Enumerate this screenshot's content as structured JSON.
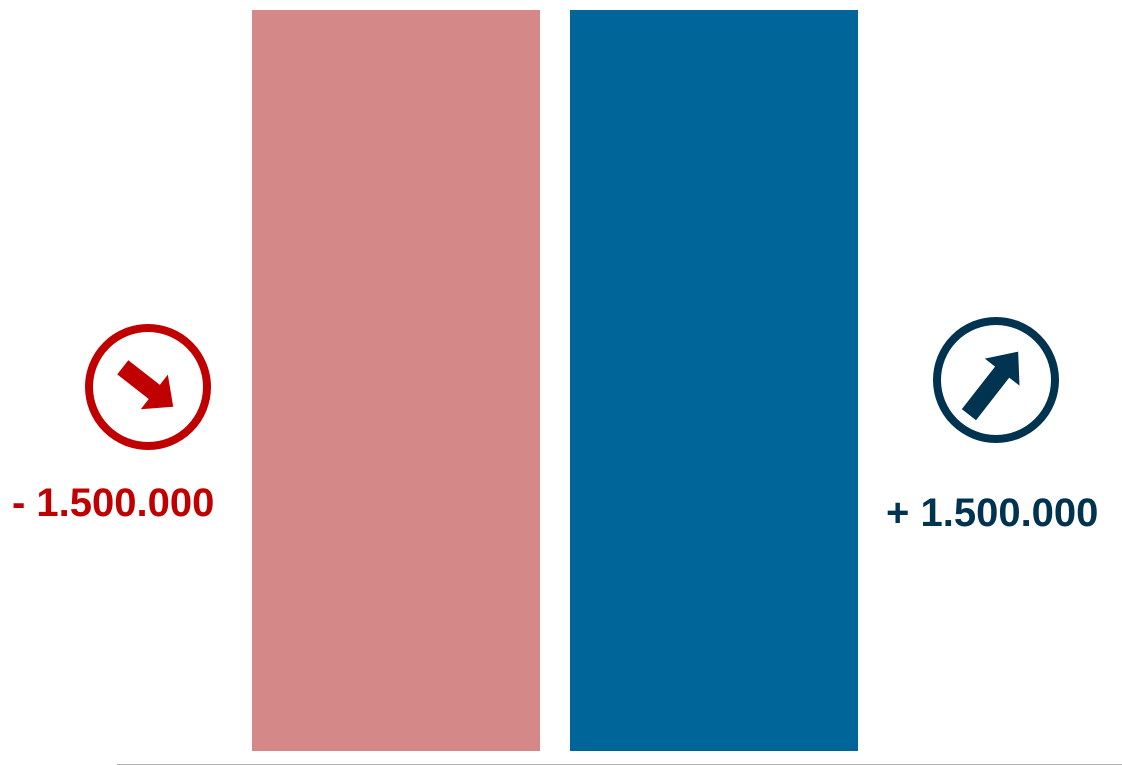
{
  "chart_data": {
    "type": "bar",
    "categories": [
      "",
      ""
    ],
    "values": [
      1,
      1
    ],
    "ylim": [
      0,
      1
    ],
    "grid": false,
    "legend": "none",
    "colors": [
      "#d48888",
      "#006699"
    ]
  },
  "annotations": {
    "decrease": {
      "text": "- 1.500.000",
      "color": "#c00000",
      "icon": "arrow-down-right-circle-icon"
    },
    "increase": {
      "text": "+ 1.500.000",
      "color": "#003350",
      "icon": "arrow-up-right-circle-icon"
    }
  },
  "baseline_color": "#b0b0b0"
}
